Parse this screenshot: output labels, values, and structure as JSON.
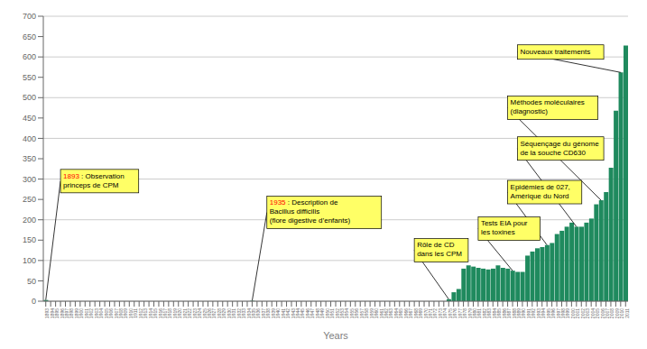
{
  "chart_data": {
    "type": "bar",
    "xlabel": "Years",
    "color": "#1f8a5e",
    "grid": true,
    "ylim": [
      0,
      700
    ],
    "yticks": [
      0,
      50,
      100,
      150,
      200,
      250,
      300,
      350,
      400,
      450,
      500,
      550,
      600,
      650,
      700
    ],
    "categories": [
      "1893",
      "1894",
      "1895",
      "1896",
      "1897",
      "1898",
      "1899",
      "1900",
      "1901",
      "1902",
      "1903",
      "1904",
      "1905",
      "1906",
      "1907",
      "1908",
      "1909",
      "1910",
      "1911",
      "1912",
      "1913",
      "1914",
      "1915",
      "1916",
      "1917",
      "1918",
      "1919",
      "1920",
      "1921",
      "1922",
      "1923",
      "1924",
      "1925",
      "1926",
      "1927",
      "1928",
      "1929",
      "1930",
      "1931",
      "1932",
      "1933",
      "1934",
      "1935",
      "1936",
      "1937",
      "1938",
      "1939",
      "1940",
      "1941",
      "1942",
      "1943",
      "1944",
      "1945",
      "1946",
      "1947",
      "1948",
      "1949",
      "1950",
      "1951",
      "1952",
      "1953",
      "1954",
      "1955",
      "1956",
      "1957",
      "1958",
      "1959",
      "1960",
      "1961",
      "1962",
      "1963",
      "1964",
      "1965",
      "1966",
      "1967",
      "1968",
      "1969",
      "1970",
      "1971",
      "1972",
      "1973",
      "1974",
      "1975",
      "1976",
      "1977",
      "1978",
      "1979",
      "1980",
      "1981",
      "1982",
      "1983",
      "1984",
      "1985",
      "1986",
      "1987",
      "1988",
      "1989",
      "1990",
      "1991",
      "1992",
      "1993",
      "1994",
      "1995",
      "1996",
      "1997",
      "1998",
      "1999",
      "2000",
      "2001",
      "2002",
      "2003",
      "2004",
      "2005",
      "2006",
      "2007",
      "2008",
      "2009",
      "2010",
      "2011"
    ],
    "values": [
      3,
      0,
      0,
      0,
      0,
      0,
      0,
      0,
      0,
      0,
      0,
      0,
      0,
      0,
      0,
      0,
      0,
      0,
      0,
      0,
      0,
      0,
      0,
      0,
      0,
      0,
      0,
      0,
      0,
      0,
      0,
      0,
      0,
      0,
      0,
      0,
      0,
      0,
      0,
      0,
      0,
      0,
      1,
      0,
      0,
      0,
      0,
      0,
      0,
      0,
      0,
      0,
      0,
      0,
      0,
      0,
      0,
      0,
      0,
      0,
      0,
      0,
      0,
      0,
      0,
      0,
      0,
      0,
      0,
      0,
      0,
      0,
      0,
      0,
      0,
      0,
      0,
      0,
      0,
      0,
      0,
      0,
      5,
      22,
      30,
      80,
      88,
      85,
      82,
      80,
      78,
      80,
      88,
      82,
      80,
      75,
      72,
      72,
      112,
      122,
      130,
      133,
      138,
      143,
      165,
      173,
      183,
      193,
      183,
      183,
      193,
      203,
      238,
      248,
      268,
      328,
      468,
      562,
      628
    ],
    "annotations": [
      {
        "text": "1893 : Observation\nprinceps de CPM",
        "category": "1893",
        "color": "#ffff66"
      },
      {
        "text": "1935 : Description de\nBacillus difficilis\n(flore digestive d’enfants)",
        "category": "1935",
        "color": "#ffff66"
      },
      {
        "text": "Rôle de CD\ndans les CPM",
        "category": "1975",
        "color": "#ffff66"
      },
      {
        "text": "Tests EIA pour\nles toxines",
        "category": "1988",
        "color": "#ffff66"
      },
      {
        "text": "Epidémies de 027,\nAmérique du Nord",
        "category": "1995",
        "color": "#ffff66"
      },
      {
        "text": "Séquençage du génome\nde la souche CD630",
        "category": "2001",
        "color": "#ffff66"
      },
      {
        "text": "Méthodes moléculaires\n(diagnostic)",
        "category": "2006",
        "color": "#ffff66"
      },
      {
        "text": "Nouveaux traitements",
        "category": "2010",
        "color": "#ffff66"
      }
    ]
  }
}
